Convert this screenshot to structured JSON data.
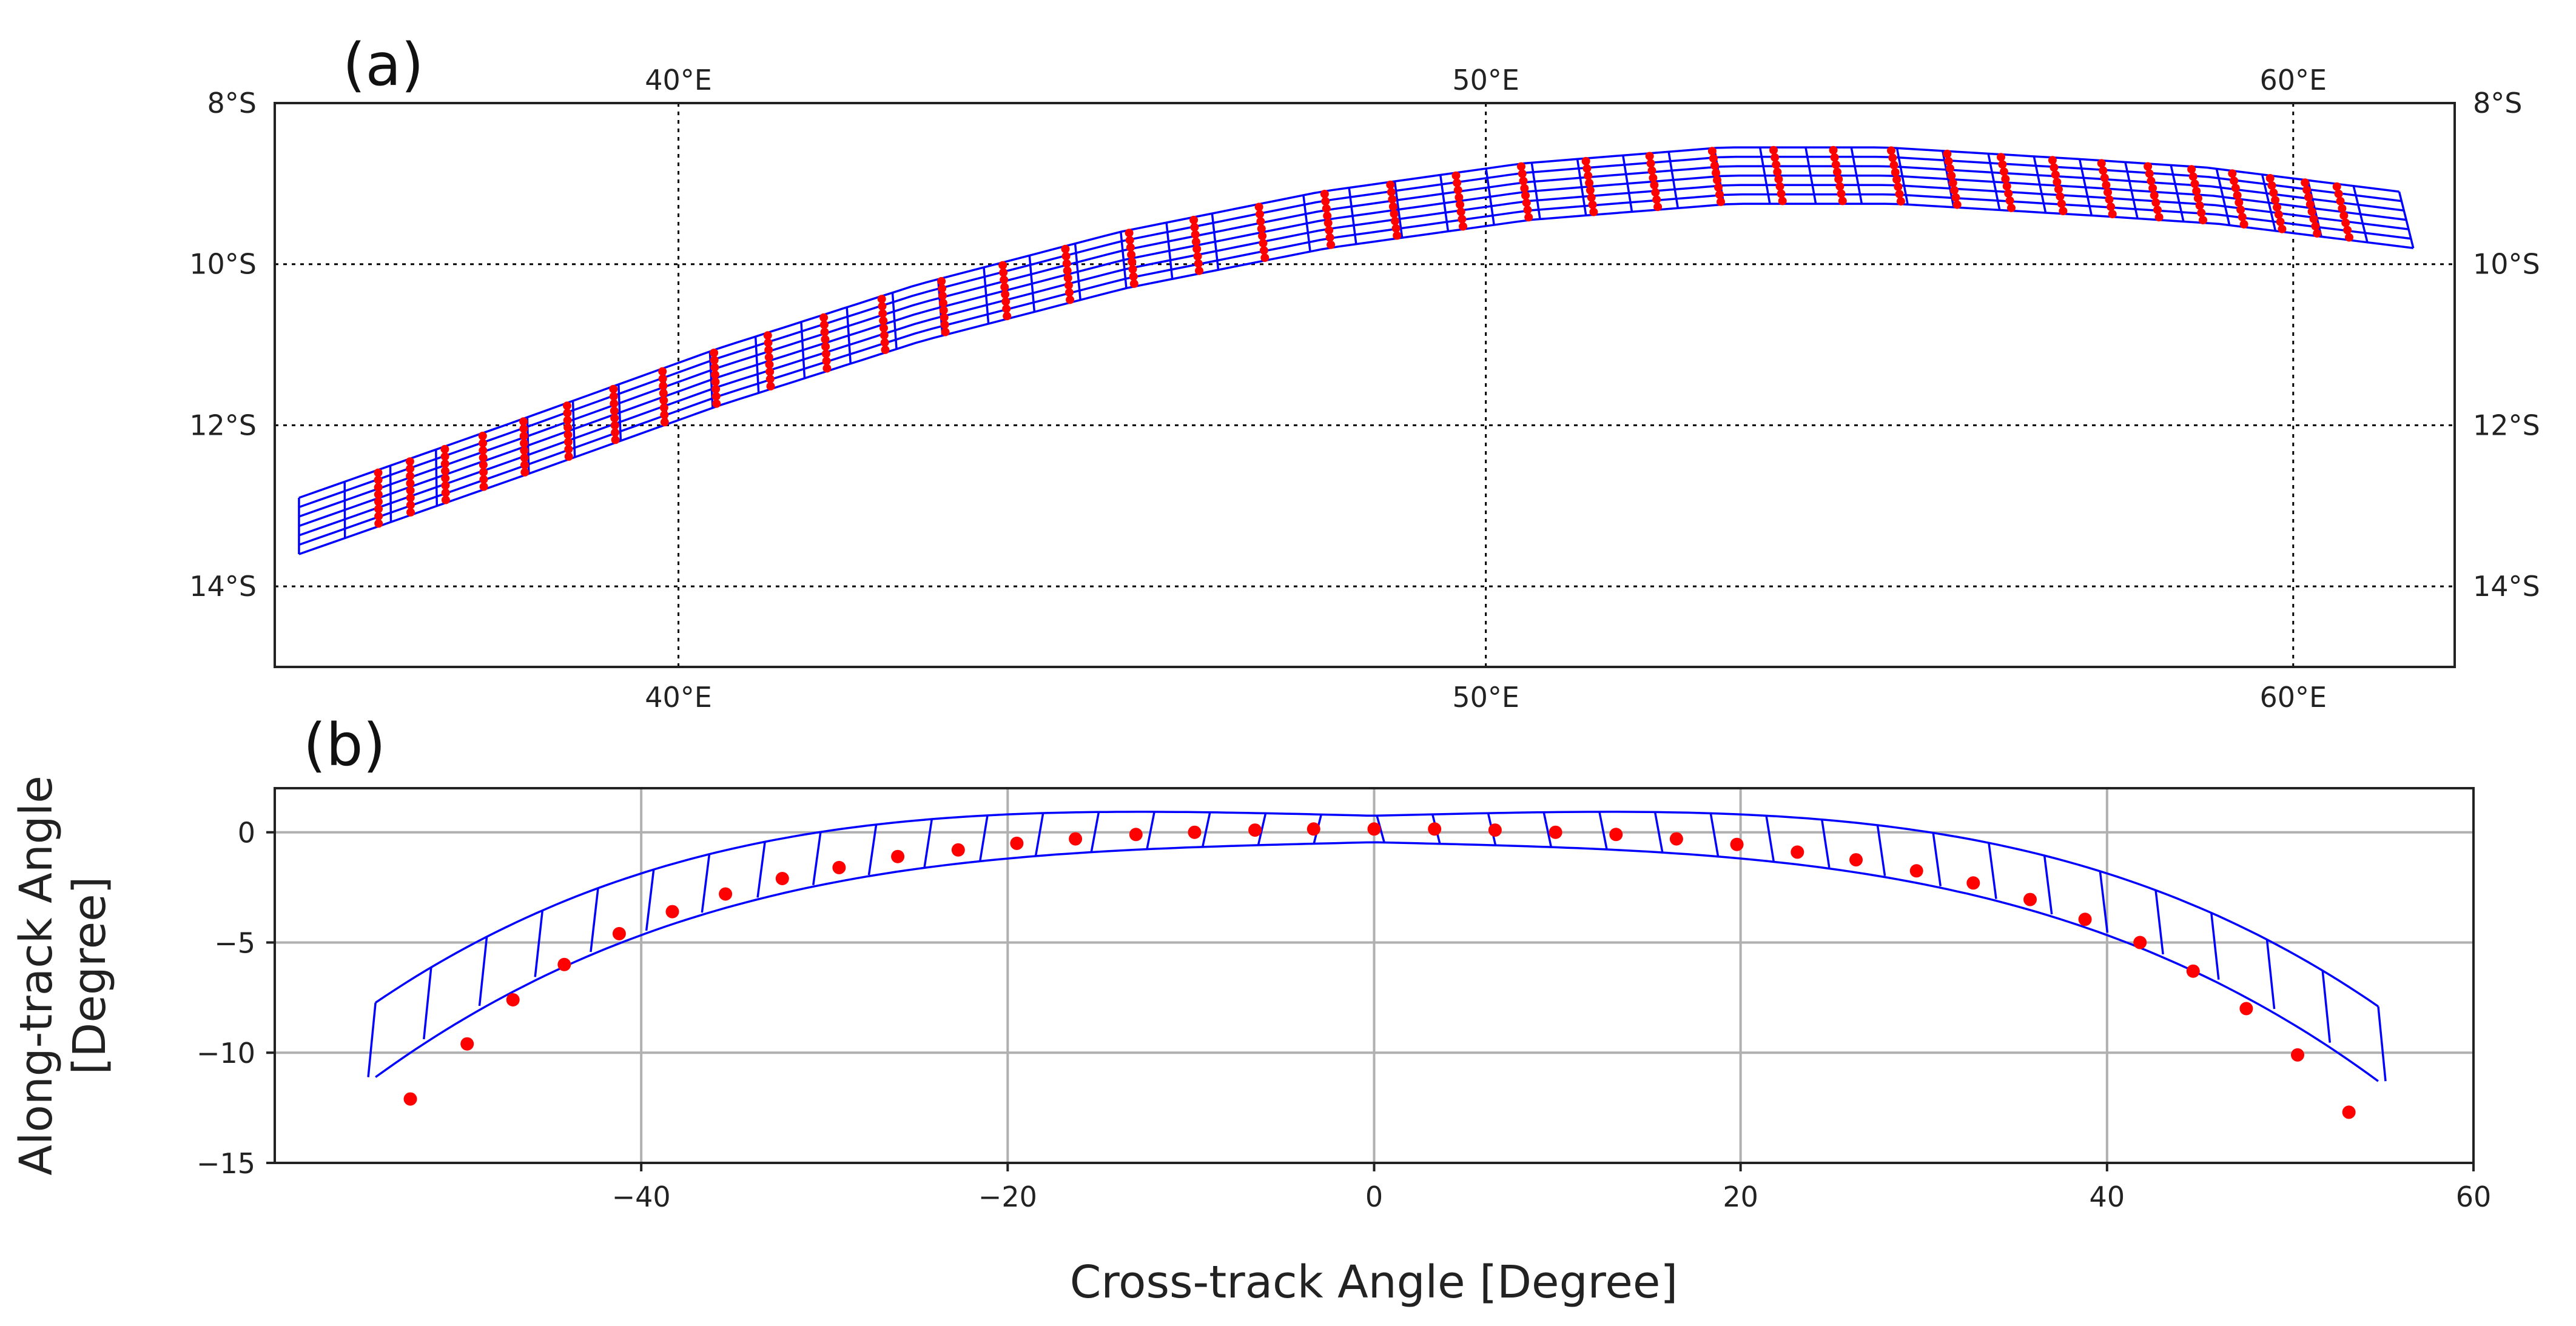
{
  "chart_data": [
    {
      "type": "map-swath",
      "panel_label": "(a)",
      "lon_range": [
        35,
        62
      ],
      "lat_range": [
        -15,
        -8
      ],
      "lon_ticks": [
        40,
        50,
        60
      ],
      "lon_tick_labels": [
        "40°E",
        "50°E",
        "60°E"
      ],
      "lat_ticks": [
        -8,
        -10,
        -12,
        -14
      ],
      "lat_tick_labels": [
        "8°S",
        "10°S",
        "12°S",
        "14°S"
      ],
      "grid": true,
      "swath_center": [
        {
          "lon": 35.3,
          "lat": -13.25
        },
        {
          "lon": 38.0,
          "lat": -12.3
        },
        {
          "lon": 40.5,
          "lat": -11.4
        },
        {
          "lon": 43.0,
          "lat": -10.6
        },
        {
          "lon": 45.5,
          "lat": -9.95
        },
        {
          "lon": 48.0,
          "lat": -9.45
        },
        {
          "lon": 50.5,
          "lat": -9.1
        },
        {
          "lon": 53.0,
          "lat": -8.9
        },
        {
          "lon": 55.0,
          "lat": -8.9
        },
        {
          "lon": 57.5,
          "lat": -9.05
        },
        {
          "lon": 59.0,
          "lat": -9.15
        },
        {
          "lon": 61.4,
          "lat": -9.45
        }
      ],
      "swath_half_width_deg": 0.35,
      "along_track_lines": 7,
      "cross_track_cells": 46,
      "sample_columns": 38,
      "sample_points_per_column": 8,
      "series_colors": {
        "swath": "#0000ff",
        "samples": "#ff0000"
      }
    },
    {
      "type": "scatter",
      "panel_label": "(b)",
      "xlabel": "Cross-track Angle [Degree]",
      "ylabel_line1": "Along-track Angle",
      "ylabel_line2": "[Degree]",
      "xlim": [
        -60,
        60
      ],
      "ylim": [
        -15,
        2
      ],
      "xticks": [
        -40,
        -20,
        0,
        20,
        40,
        60
      ],
      "xtick_labels": [
        "−40",
        "−20",
        "0",
        "20",
        "40",
        "60"
      ],
      "yticks": [
        0,
        -5,
        -10,
        -15
      ],
      "ytick_labels": [
        "0",
        "−5",
        "−10",
        "−15"
      ],
      "grid": true,
      "footprint_sag_coeff": 1.58e-05,
      "footprint_half_width_deg": 0.6,
      "footprint_x_range": [
        -54.5,
        54.8
      ],
      "footprint_cells": 36,
      "points": [
        {
          "x": -52.6,
          "y": -12.1
        },
        {
          "x": -49.5,
          "y": -9.6
        },
        {
          "x": -47.0,
          "y": -7.6
        },
        {
          "x": -44.2,
          "y": -6.0
        },
        {
          "x": -41.2,
          "y": -4.6
        },
        {
          "x": -38.3,
          "y": -3.6
        },
        {
          "x": -35.4,
          "y": -2.8
        },
        {
          "x": -32.3,
          "y": -2.1
        },
        {
          "x": -29.2,
          "y": -1.6
        },
        {
          "x": -26.0,
          "y": -1.1
        },
        {
          "x": -22.7,
          "y": -0.8
        },
        {
          "x": -19.5,
          "y": -0.5
        },
        {
          "x": -16.3,
          "y": -0.3
        },
        {
          "x": -13.0,
          "y": -0.1
        },
        {
          "x": -9.8,
          "y": 0.0
        },
        {
          "x": -6.5,
          "y": 0.1
        },
        {
          "x": -3.3,
          "y": 0.15
        },
        {
          "x": 0.0,
          "y": 0.15
        },
        {
          "x": 3.3,
          "y": 0.15
        },
        {
          "x": 6.6,
          "y": 0.1
        },
        {
          "x": 9.9,
          "y": 0.0
        },
        {
          "x": 13.2,
          "y": -0.1
        },
        {
          "x": 16.5,
          "y": -0.3
        },
        {
          "x": 19.8,
          "y": -0.55
        },
        {
          "x": 23.1,
          "y": -0.9
        },
        {
          "x": 26.3,
          "y": -1.25
        },
        {
          "x": 29.6,
          "y": -1.75
        },
        {
          "x": 32.7,
          "y": -2.3
        },
        {
          "x": 35.8,
          "y": -3.05
        },
        {
          "x": 38.8,
          "y": -3.95
        },
        {
          "x": 41.8,
          "y": -5.0
        },
        {
          "x": 44.7,
          "y": -6.3
        },
        {
          "x": 47.6,
          "y": -8.0
        },
        {
          "x": 50.4,
          "y": -10.1
        },
        {
          "x": 53.2,
          "y": -12.7
        }
      ],
      "series_colors": {
        "footprints": "#0000ff",
        "points": "#ff0000"
      }
    }
  ]
}
